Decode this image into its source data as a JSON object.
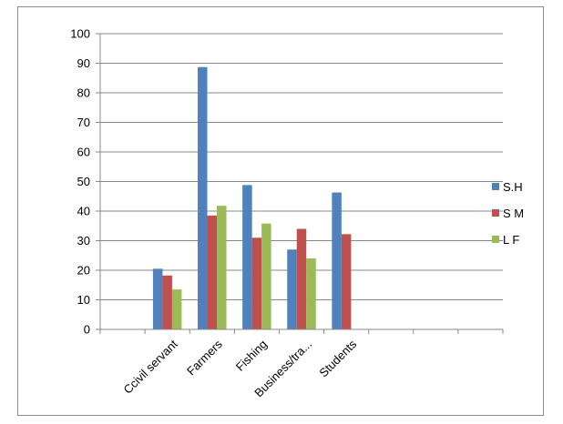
{
  "chart_data": {
    "type": "bar",
    "title": "",
    "xlabel": "",
    "ylabel": "",
    "ylim": [
      0,
      100
    ],
    "yticks": [
      0,
      10,
      20,
      30,
      40,
      50,
      60,
      70,
      80,
      90,
      100
    ],
    "grid": true,
    "legend_position": "right",
    "categories": [
      "",
      "Ccivil servant",
      "Farmers",
      "Fishing",
      "Business/tra...",
      "Students",
      "",
      "",
      ""
    ],
    "series": [
      {
        "name": "S.H",
        "color": "#4F81BD",
        "values": [
          null,
          20.5,
          88.7,
          48.8,
          27,
          46.3,
          null,
          null,
          null
        ]
      },
      {
        "name": "S M",
        "color": "#C0504D",
        "values": [
          null,
          18.2,
          38.5,
          31,
          34,
          32.2,
          null,
          null,
          null
        ]
      },
      {
        "name": "L F",
        "color": "#9BBB59",
        "values": [
          null,
          13.5,
          41.8,
          35.8,
          24,
          null,
          null,
          null,
          null
        ]
      }
    ]
  }
}
